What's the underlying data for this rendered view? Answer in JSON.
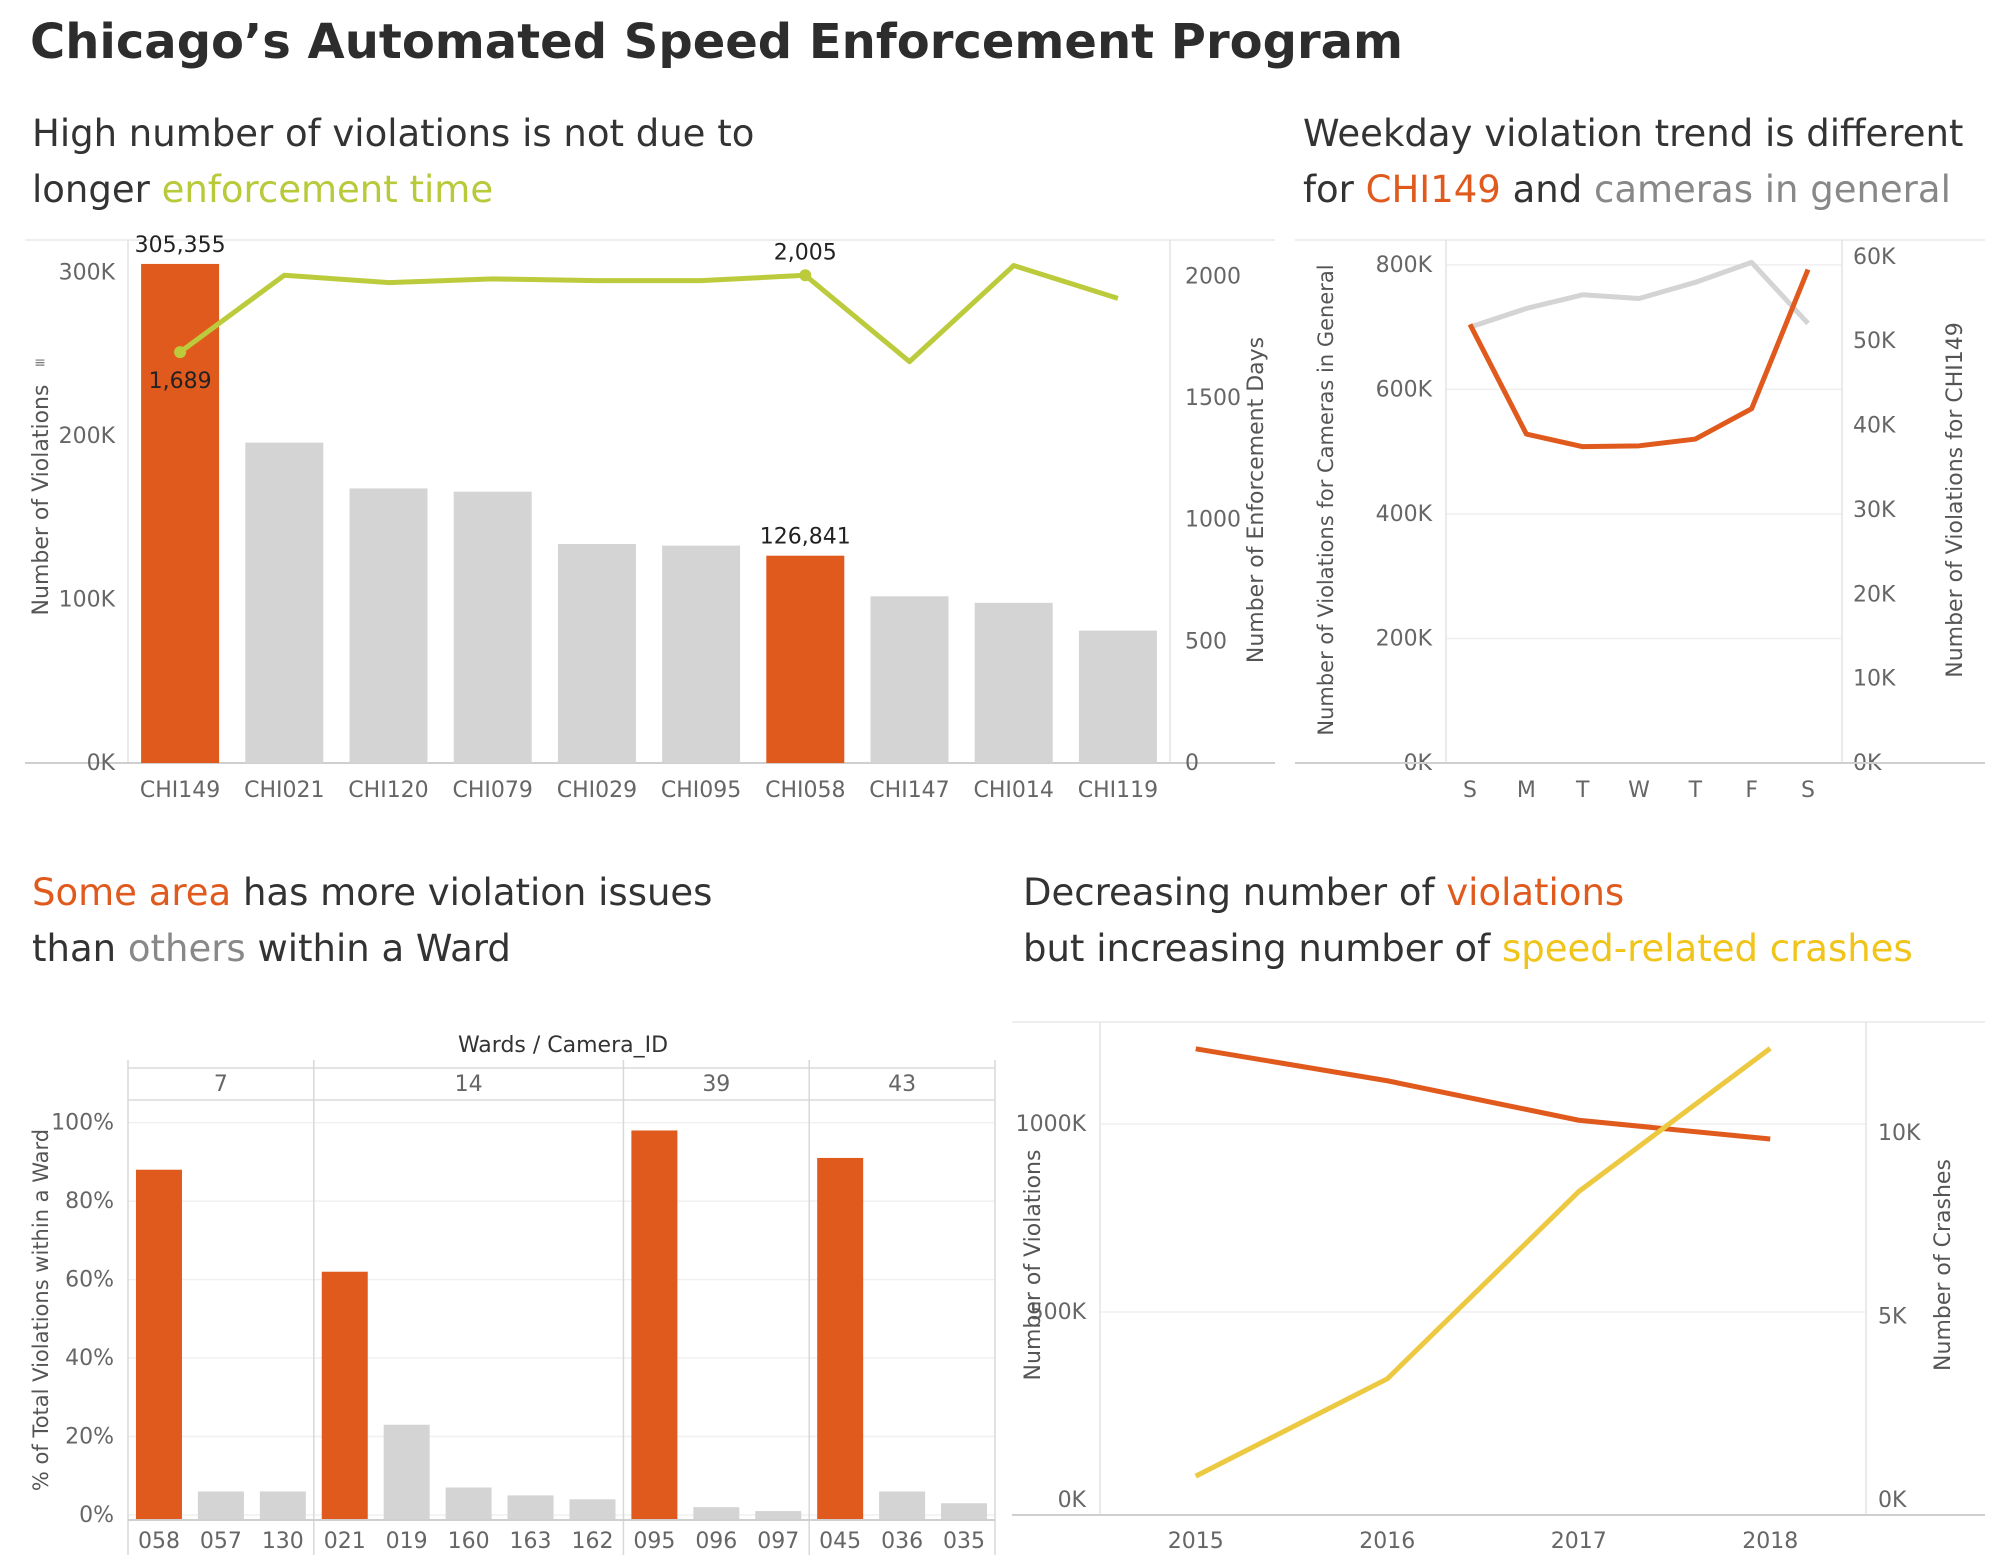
{
  "title": "Chicago’s Automated Speed Enforcement Program",
  "colors": {
    "highlight": "#e05a1e",
    "bar_gray": "#d4d4d4",
    "line_green": "#bccb3c",
    "line_gray": "#d4d4d4",
    "line_orange": "#e05a1e",
    "line_yellow": "#ecc940",
    "axis_text": "#666666"
  },
  "panels": {
    "p1": {
      "title": [
        [
          {
            "t": "High number of violations is not due to",
            "c": ""
          }
        ],
        [
          {
            "t": "longer ",
            "c": ""
          },
          {
            "t": "enforcement time",
            "c": "green"
          }
        ]
      ]
    },
    "p2": {
      "title": [
        [
          {
            "t": "Weekday violation trend is different",
            "c": ""
          }
        ],
        [
          {
            "t": "for ",
            "c": ""
          },
          {
            "t": "CHI149",
            "c": "orange"
          },
          {
            "t": " and ",
            "c": ""
          },
          {
            "t": "cameras in general",
            "c": "gray"
          }
        ]
      ]
    },
    "p3": {
      "title": [
        [
          {
            "t": "Some area",
            "c": "orange"
          },
          {
            "t": " has more violation issues",
            "c": ""
          }
        ],
        [
          {
            "t": "than ",
            "c": ""
          },
          {
            "t": "others",
            "c": "gray"
          },
          {
            "t": " within a Ward",
            "c": ""
          }
        ]
      ]
    },
    "p4": {
      "title": [
        [
          {
            "t": "Decreasing number of ",
            "c": ""
          },
          {
            "t": "violations",
            "c": "orange"
          }
        ],
        [
          {
            "t": "but increasing number of ",
            "c": ""
          },
          {
            "t": "speed-related crashes",
            "c": "yellow"
          }
        ]
      ]
    }
  },
  "chart_data": [
    {
      "type": "bar",
      "categories": [
        "CHI149",
        "CHI021",
        "CHI120",
        "CHI079",
        "CHI029",
        "CHI095",
        "CHI058",
        "CHI147",
        "CHI014",
        "CHI119"
      ],
      "series": [
        {
          "type": "bar",
          "axis": "left",
          "values": [
            305355,
            196000,
            168000,
            166000,
            134000,
            133000,
            126841,
            102000,
            98000,
            81000
          ],
          "highlight": [
            true,
            false,
            false,
            false,
            false,
            false,
            true,
            false,
            false,
            false
          ]
        },
        {
          "type": "line",
          "axis": "right",
          "values": [
            1689,
            2005,
            1975,
            1990,
            1983,
            1983,
            2005,
            1650,
            2045,
            1910
          ]
        }
      ],
      "data_labels": [
        {
          "series": 0,
          "index": 0,
          "text": "305,355"
        },
        {
          "series": 0,
          "index": 6,
          "text": "126,841"
        },
        {
          "series": 1,
          "index": 0,
          "text": "1,689"
        },
        {
          "series": 1,
          "index": 6,
          "text": "2,005"
        }
      ],
      "ylabel": "Number of Violations",
      "y2label": "Number of Enforcement Days",
      "ylim": [
        0,
        320000
      ],
      "y2lim": [
        0,
        2150
      ],
      "yticks": [
        {
          "v": 0,
          "t": "0K"
        },
        {
          "v": 100000,
          "t": "100K"
        },
        {
          "v": 200000,
          "t": "200K"
        },
        {
          "v": 300000,
          "t": "300K"
        }
      ],
      "y2ticks": [
        {
          "v": 0,
          "t": "0"
        },
        {
          "v": 500,
          "t": "500"
        },
        {
          "v": 1000,
          "t": "1000"
        },
        {
          "v": 1500,
          "t": "1500"
        },
        {
          "v": 2000,
          "t": "2000"
        }
      ],
      "grid": false
    },
    {
      "type": "line",
      "categories": [
        "S",
        "M",
        "T",
        "W",
        "T",
        "F",
        "S"
      ],
      "series": [
        {
          "axis": "left",
          "color": "gray",
          "values": [
            700000,
            730000,
            752000,
            746000,
            772000,
            804000,
            706000
          ]
        },
        {
          "axis": "right",
          "color": "orange",
          "values": [
            52000,
            39000,
            37500,
            37600,
            38400,
            42000,
            58500
          ]
        }
      ],
      "ylabel": "Number of Violations for Cameras in General",
      "y2label": "Number of Violations for CHI149",
      "ylim": [
        0,
        840000
      ],
      "y2lim": [
        0,
        62000
      ],
      "yticks": [
        {
          "v": 0,
          "t": "0K"
        },
        {
          "v": 200000,
          "t": "200K"
        },
        {
          "v": 400000,
          "t": "400K"
        },
        {
          "v": 600000,
          "t": "600K"
        },
        {
          "v": 800000,
          "t": "800K"
        }
      ],
      "y2ticks": [
        {
          "v": 0,
          "t": "0K"
        },
        {
          "v": 10000,
          "t": "10K"
        },
        {
          "v": 20000,
          "t": "20K"
        },
        {
          "v": 30000,
          "t": "30K"
        },
        {
          "v": 40000,
          "t": "40K"
        },
        {
          "v": 50000,
          "t": "50K"
        },
        {
          "v": 60000,
          "t": "60K"
        }
      ],
      "grid": true
    },
    {
      "type": "bar",
      "header": "Wards / Camera_ID",
      "groups": [
        {
          "ward": "7",
          "cameras": [
            "058",
            "057",
            "130"
          ],
          "values": [
            88,
            6,
            6
          ],
          "highlight": [
            true,
            false,
            false
          ]
        },
        {
          "ward": "14",
          "cameras": [
            "021",
            "019",
            "160",
            "163",
            "162"
          ],
          "values": [
            62,
            23,
            7,
            5,
            4
          ],
          "highlight": [
            true,
            false,
            false,
            false,
            false
          ]
        },
        {
          "ward": "39",
          "cameras": [
            "095",
            "096",
            "097"
          ],
          "values": [
            98,
            2,
            1
          ],
          "highlight": [
            true,
            false,
            false
          ]
        },
        {
          "ward": "43",
          "cameras": [
            "045",
            "036",
            "035"
          ],
          "values": [
            91,
            6,
            3
          ],
          "highlight": [
            true,
            false,
            false
          ]
        }
      ],
      "ylabel": "% of Total Violations within a Ward",
      "ylim": [
        0,
        105
      ],
      "yticks": [
        {
          "v": 0,
          "t": "0%"
        },
        {
          "v": 20,
          "t": "20%"
        },
        {
          "v": 40,
          "t": "40%"
        },
        {
          "v": 60,
          "t": "60%"
        },
        {
          "v": 80,
          "t": "80%"
        },
        {
          "v": 100,
          "t": "100%"
        }
      ],
      "grid": true
    },
    {
      "type": "line",
      "categories": [
        "2015",
        "2016",
        "2017",
        "2018"
      ],
      "series": [
        {
          "axis": "left",
          "color": "orange",
          "values": [
            1200000,
            1115000,
            1010000,
            960000
          ]
        },
        {
          "axis": "right",
          "color": "yellow",
          "values": [
            650,
            3300,
            8400,
            12300
          ]
        }
      ],
      "ylabel": "Number of Violations",
      "y2label": "Number of Crashes",
      "ylim": [
        0,
        1250000
      ],
      "y2lim": [
        0,
        12800
      ],
      "yticks": [
        {
          "v": 0,
          "t": "0K"
        },
        {
          "v": 500000,
          "t": "500K"
        },
        {
          "v": 1000000,
          "t": "1000K"
        }
      ],
      "y2ticks": [
        {
          "v": 0,
          "t": "0K"
        },
        {
          "v": 5000,
          "t": "5K"
        },
        {
          "v": 10000,
          "t": "10K"
        }
      ],
      "grid": true
    }
  ]
}
